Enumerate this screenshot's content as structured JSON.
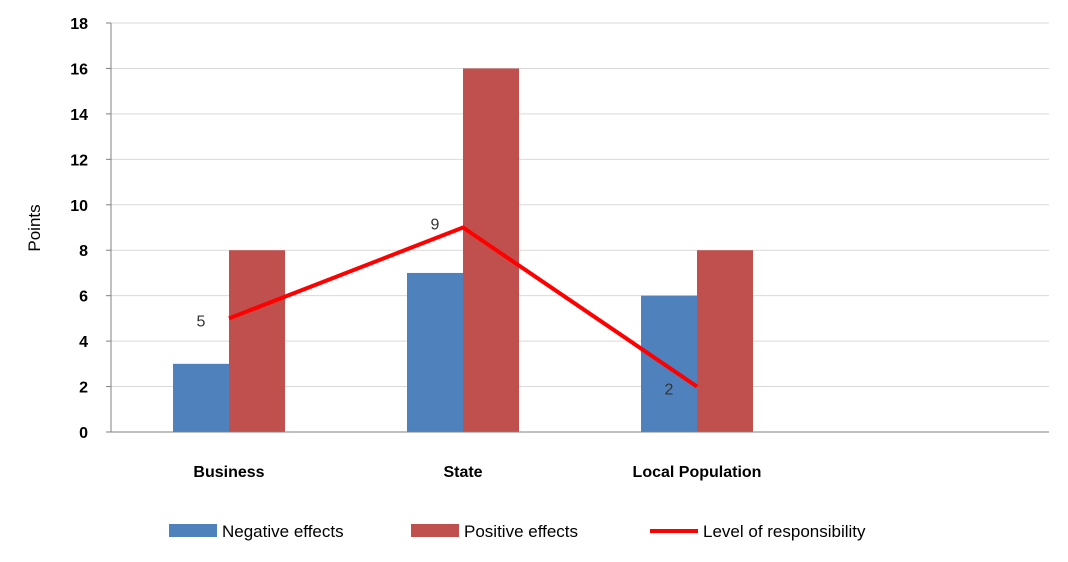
{
  "chart_data": {
    "type": "bar",
    "categories": [
      "Business",
      "State",
      "Local Population"
    ],
    "series": [
      {
        "name": "Negative effects",
        "type": "bar",
        "color": "#4F81BD",
        "values": [
          3,
          7,
          6
        ]
      },
      {
        "name": "Positive effects",
        "type": "bar",
        "color": "#C0504D",
        "values": [
          8,
          16,
          8
        ]
      },
      {
        "name": "Level of responsibility",
        "type": "line",
        "color": "#FF0000",
        "values": [
          5,
          9,
          2
        ]
      }
    ],
    "ylabel": "Points",
    "ylim": [
      0,
      18
    ],
    "yticks": [
      "0",
      "2",
      "4",
      "6",
      "8",
      "10",
      "12",
      "14",
      "16",
      "18"
    ],
    "grid": true,
    "legend": "bottom",
    "data_labels": [
      "5",
      "9",
      "2"
    ]
  }
}
